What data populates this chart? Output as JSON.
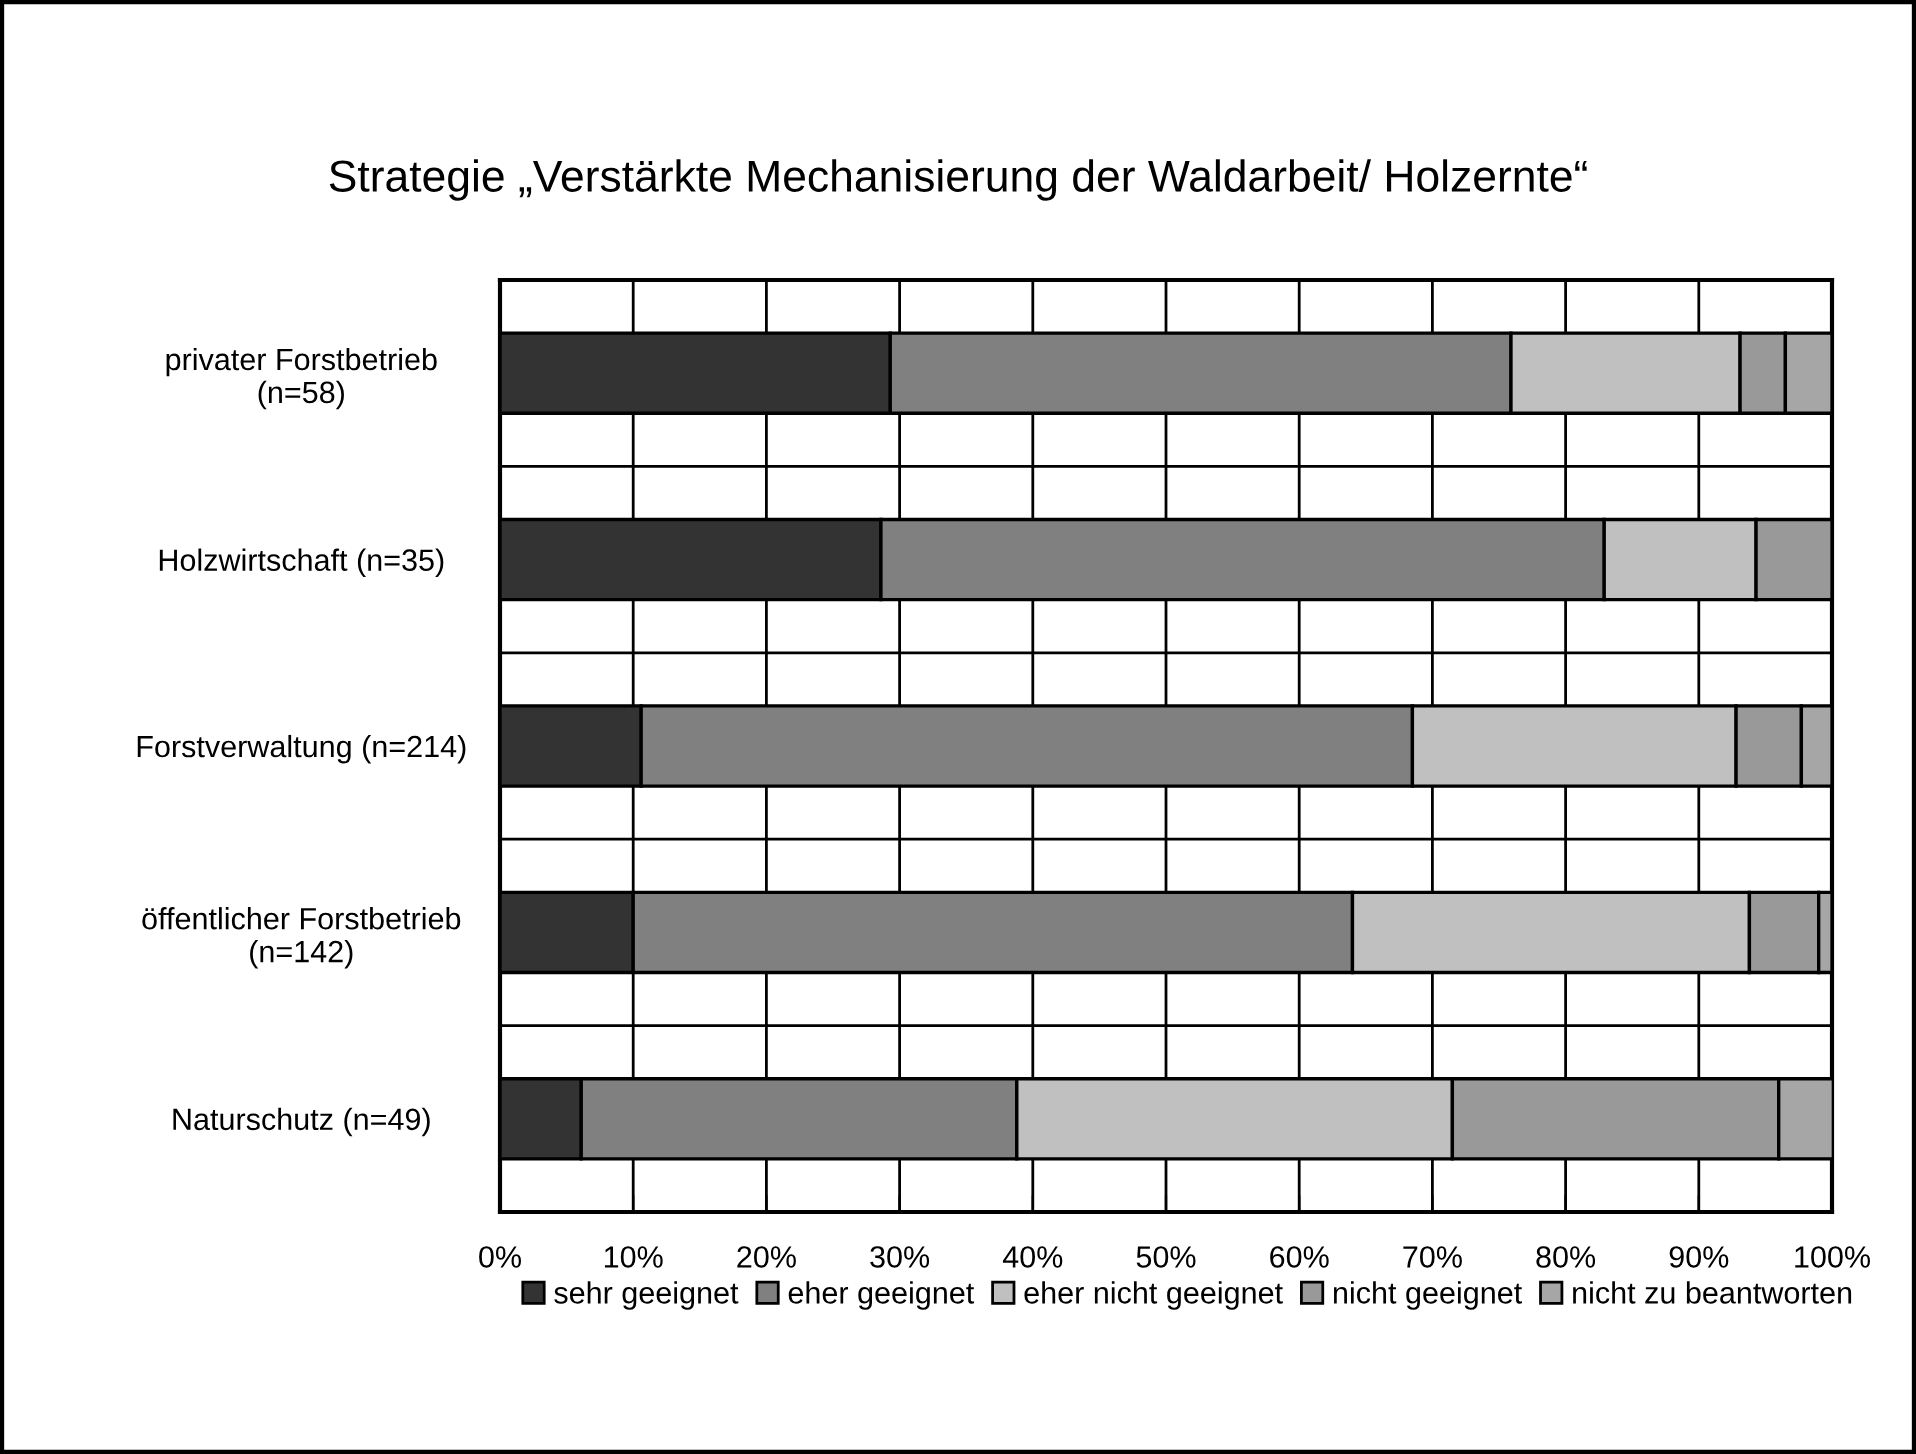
{
  "chart_data": {
    "type": "bar",
    "orientation": "horizontal",
    "stacked": true,
    "title": "Strategie „Verstärkte Mechanisierung der Waldarbeit/ Holzernte“",
    "categories": [
      "privater Forstbetrieb\n(n=58)",
      "Holzwirtschaft (n=35)",
      "Forstverwaltung (n=214)",
      "öffentlicher Forstbetrieb\n(n=142)",
      "Naturschutz (n=49)"
    ],
    "series": [
      {
        "name": "sehr geeignet",
        "color": "#333333",
        "values": [
          29.3,
          28.6,
          10.6,
          10.0,
          6.1
        ]
      },
      {
        "name": "eher geeignet",
        "color": "#808080",
        "values": [
          46.6,
          54.3,
          57.9,
          54.0,
          32.7
        ]
      },
      {
        "name": "eher nicht geeignet",
        "color": "#c0c0c0",
        "values": [
          17.2,
          11.4,
          24.3,
          29.8,
          32.7
        ]
      },
      {
        "name": "nicht geeignet",
        "color": "#999999",
        "values": [
          3.4,
          5.7,
          4.9,
          5.2,
          24.5
        ]
      },
      {
        "name": "nicht zu beantworten",
        "color": "#a6a6a6",
        "values": [
          3.5,
          null,
          2.3,
          1.0,
          4.1
        ]
      }
    ],
    "xlim": [
      0,
      100
    ],
    "xticks": [
      {
        "value": 0,
        "label": "0%"
      },
      {
        "value": 10,
        "label": "10%"
      },
      {
        "value": 20,
        "label": "20%"
      },
      {
        "value": 30,
        "label": "30%"
      },
      {
        "value": 40,
        "label": "40%"
      },
      {
        "value": 50,
        "label": "50%"
      },
      {
        "value": 60,
        "label": "60%"
      },
      {
        "value": 70,
        "label": "70%"
      },
      {
        "value": 80,
        "label": "80%"
      },
      {
        "value": 90,
        "label": "90%"
      },
      {
        "value": 100,
        "label": "100%"
      }
    ],
    "grid": true,
    "legend": "bottom"
  }
}
